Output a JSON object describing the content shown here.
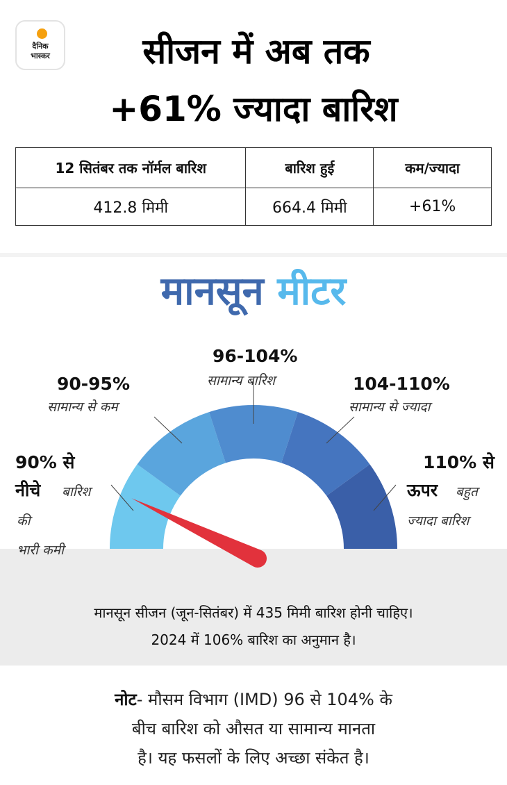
{
  "logo": {
    "line1": "दैनिक",
    "line2": "भास्कर"
  },
  "headline": {
    "line1": "सीजन में अब तक",
    "line2": "+61% ज्यादा बारिश"
  },
  "table": {
    "headers": [
      "12 सितंबर तक नॉर्मल बारिश",
      "बारिश हुई",
      "कम/ज्यादा"
    ],
    "row": [
      "412.8 मिमी",
      "664.4 मिमी",
      "+61%"
    ]
  },
  "meter": {
    "title_part1": "मानसून",
    "title_part2": "मीटर",
    "colors": [
      "#6ec8ee",
      "#5aa5dd",
      "#4f8ccf",
      "#4575bf",
      "#3a5fa8"
    ],
    "needle_color": "#e2323c",
    "needle_value_percent": 85,
    "segments": [
      {
        "range_line1": "90% से",
        "range_line2": "नीचे",
        "desc_part1": "बारिश",
        "desc_part2": "की",
        "desc_part3": "भारी कमी"
      },
      {
        "range": "90-95%",
        "desc": "सामान्य से कम"
      },
      {
        "range": "96-104%",
        "desc": "सामान्य बारिश"
      },
      {
        "range": "104-110%",
        "desc": "सामान्य से ज्यादा"
      },
      {
        "range_line1": "110% से",
        "range_line2": "ऊपर",
        "desc_part1": "बहुत",
        "desc_part2": "ज्यादा बारिश"
      }
    ]
  },
  "info": {
    "line1": "मानसून सीजन (जून-सितंबर) में 435 मिमी बारिश होनी चाहिए।",
    "line2": "2024 में 106% बारिश का अनुमान है।"
  },
  "note": {
    "label": "नोट",
    "line1": "- मौसम विभाग (IMD) 96 से 104% के",
    "line2": "बीच बारिश को औसत या सामान्य मानता",
    "line3": "है। यह फसलों के लिए अच्छा संकेत है।"
  }
}
